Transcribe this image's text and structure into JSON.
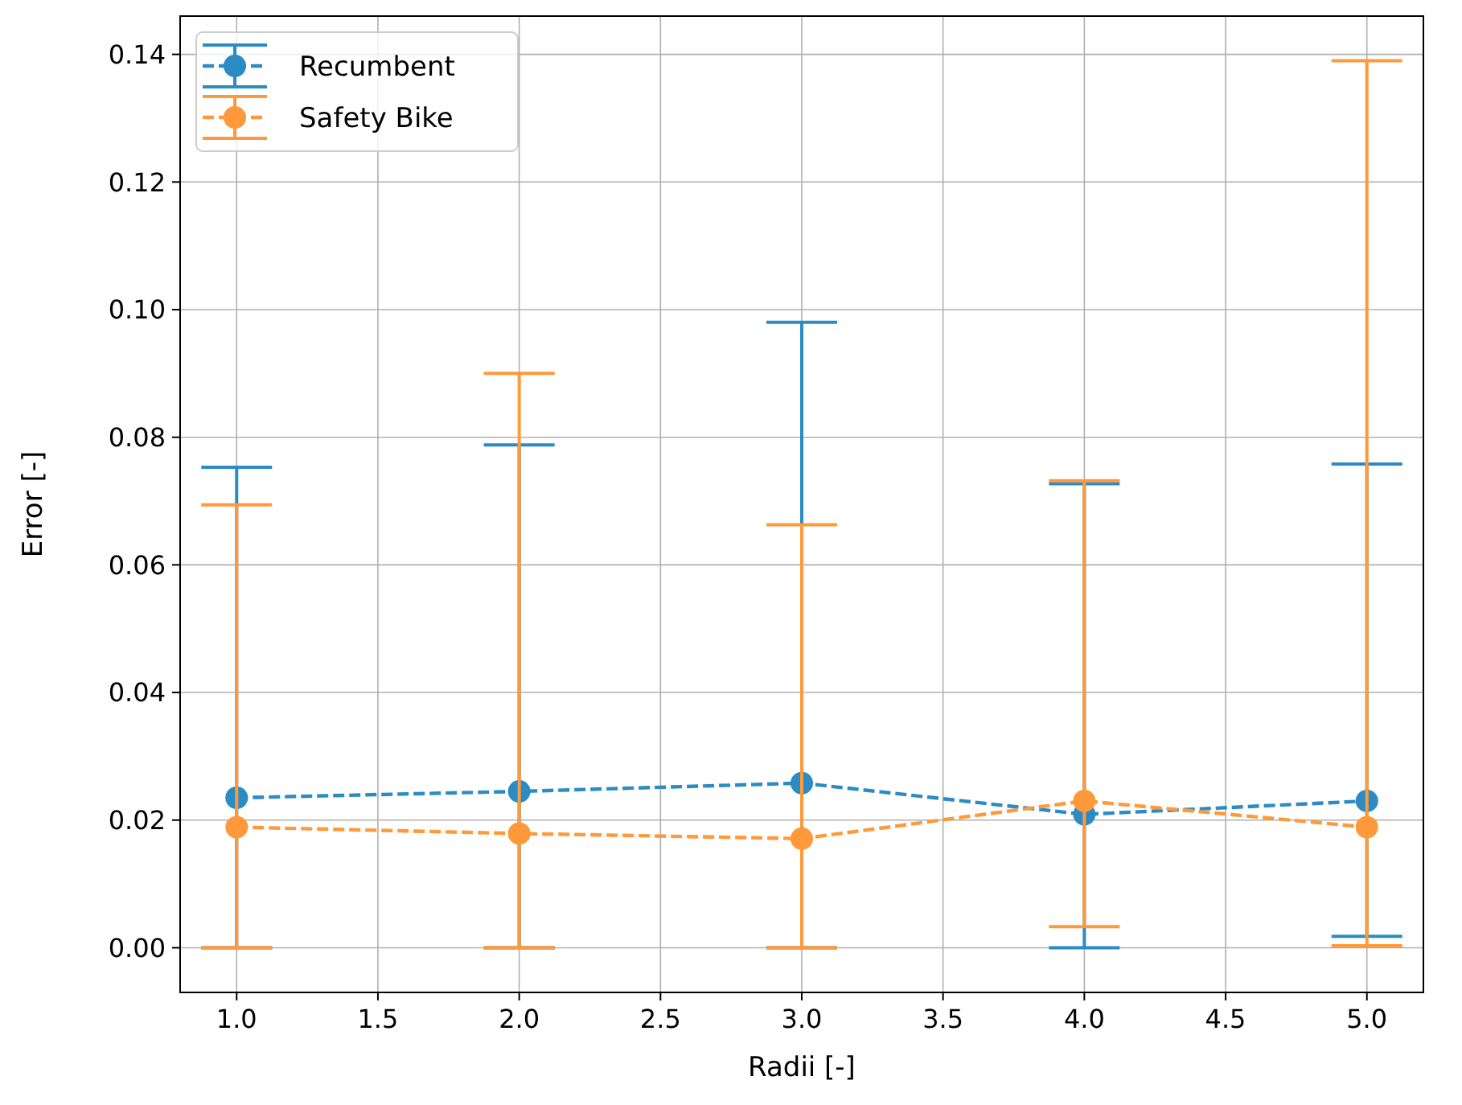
{
  "chart_data": {
    "type": "line",
    "xlabel": "Radii [-]",
    "ylabel": "Error [-]",
    "x": [
      1,
      2,
      3,
      4,
      5
    ],
    "series": [
      {
        "name": "Recumbent",
        "color": "#2b8cc4",
        "values": [
          0.0235,
          0.0245,
          0.0258,
          0.0209,
          0.023
        ],
        "errors": [
          [
            0,
            0.0753
          ],
          [
            0,
            0.0788
          ],
          [
            0,
            0.098
          ],
          [
            0,
            0.0727
          ],
          [
            0.0018,
            0.0758
          ]
        ]
      },
      {
        "name": "Safety Bike",
        "color": "#ff993a",
        "values": [
          0.0189,
          0.0179,
          0.0171,
          0.023,
          0.0189
        ],
        "errors": [
          [
            0,
            0.0694
          ],
          [
            0,
            0.09
          ],
          [
            0,
            0.0663
          ],
          [
            0.0033,
            0.0732
          ],
          [
            0.0003,
            0.139
          ]
        ]
      }
    ],
    "xlim": [
      0.8,
      5.2
    ],
    "xticks": [
      {
        "value": 1,
        "label": "1.0"
      },
      {
        "value": 1.5,
        "label": "1.5"
      },
      {
        "value": 2,
        "label": "2.0"
      },
      {
        "value": 2.5,
        "label": "2.5"
      },
      {
        "value": 3,
        "label": "3.0"
      },
      {
        "value": 3.5,
        "label": "3.5"
      },
      {
        "value": 4,
        "label": "4.0"
      },
      {
        "value": 4.5,
        "label": "4.5"
      },
      {
        "value": 5,
        "label": "5.0"
      }
    ],
    "ylim": [
      -0.007,
      0.146
    ],
    "yticks": [
      {
        "value": 0,
        "label": "0.00"
      },
      {
        "value": 0.02,
        "label": "0.02"
      },
      {
        "value": 0.04,
        "label": "0.04"
      },
      {
        "value": 0.06,
        "label": "0.06"
      },
      {
        "value": 0.08,
        "label": "0.08"
      },
      {
        "value": 0.1,
        "label": "0.10"
      },
      {
        "value": 0.12,
        "label": "0.12"
      },
      {
        "value": 0.14,
        "label": "0.14"
      }
    ],
    "grid": true,
    "legend": "top left",
    "marker": "circle",
    "line_style": "dashed"
  }
}
